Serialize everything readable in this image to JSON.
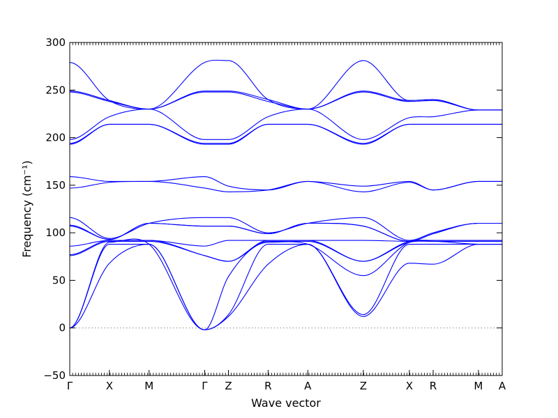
{
  "chart_data": {
    "type": "line",
    "title": "",
    "xlabel": "Wave vector",
    "ylabel": "Frequency (cm⁻¹)",
    "ylim": [
      -50,
      300
    ],
    "yticks": [
      -50,
      0,
      50,
      100,
      150,
      200,
      250,
      300
    ],
    "high_symmetry_points": [
      {
        "label": "Γ",
        "x": 0.0
      },
      {
        "label": "X",
        "x": 0.5
      },
      {
        "label": "M",
        "x": 1.0
      },
      {
        "label": "Γ",
        "x": 1.7
      },
      {
        "label": "Z",
        "x": 2.0
      },
      {
        "label": "R",
        "x": 2.5
      },
      {
        "label": "A",
        "x": 3.0
      },
      {
        "label": "Z",
        "x": 3.7
      },
      {
        "label": "X",
        "x": 4.28
      },
      {
        "label": "R",
        "x": 4.58
      },
      {
        "label": "M",
        "x": 5.15
      },
      {
        "label": "A",
        "x": 5.45
      }
    ],
    "xlim": [
      0.0,
      5.45
    ],
    "zero_line": {
      "y": 0,
      "style": "dotted",
      "color": "#888888"
    },
    "line_color": "#0000ff",
    "branches": [
      {
        "x": [
          0,
          0.5,
          1.0,
          1.7,
          2.0,
          2.5,
          3.0,
          3.7,
          4.28,
          4.58,
          5.15,
          5.45
        ],
        "y": [
          0,
          68,
          88,
          -2,
          12,
          67,
          88,
          12,
          68,
          67,
          88,
          88
        ]
      },
      {
        "x": [
          0,
          0.5,
          1.0,
          1.7,
          2.0,
          2.5,
          3.0,
          3.7,
          4.28,
          4.58,
          5.15,
          5.45
        ],
        "y": [
          0,
          88,
          88,
          -2,
          14,
          88,
          88,
          14,
          88,
          88,
          88,
          88
        ]
      },
      {
        "x": [
          0,
          0.5,
          1.0,
          1.7,
          2.0,
          2.5,
          3.0,
          3.7,
          4.28,
          4.58,
          5.15,
          5.45
        ],
        "y": [
          0,
          90,
          88,
          -2,
          54,
          90,
          88,
          55,
          90,
          91,
          88,
          88
        ]
      },
      {
        "x": [
          0,
          0.5,
          1.0,
          1.7,
          2.0,
          2.5,
          3.0,
          3.7,
          4.28,
          4.58,
          5.15,
          5.45
        ],
        "y": [
          76,
          91,
          91,
          76,
          70,
          91,
          91,
          70,
          90,
          91,
          91,
          91
        ]
      },
      {
        "x": [
          0,
          0.5,
          1.0,
          1.7,
          2.0,
          2.5,
          3.0,
          3.7,
          4.28,
          4.58,
          5.15,
          5.45
        ],
        "y": [
          77,
          92,
          92,
          76,
          70,
          92,
          92,
          70,
          91,
          92,
          92,
          92
        ]
      },
      {
        "x": [
          0,
          0.5,
          1.0,
          1.7,
          2.0,
          2.5,
          3.0,
          3.7,
          4.28,
          4.58,
          5.15,
          5.45
        ],
        "y": [
          86,
          92,
          92,
          86,
          92,
          92,
          92,
          92,
          91,
          92,
          92,
          92
        ]
      },
      {
        "x": [
          0,
          0.5,
          1.0,
          1.7,
          2.0,
          2.5,
          3.0,
          3.7,
          4.28,
          4.58,
          5.15,
          5.45
        ],
        "y": [
          107,
          93,
          110,
          107,
          107,
          99,
          110,
          107,
          91,
          99,
          110,
          110
        ]
      },
      {
        "x": [
          0,
          0.5,
          1.0,
          1.7,
          2.0,
          2.5,
          3.0,
          3.7,
          4.28,
          4.58,
          5.15,
          5.45
        ],
        "y": [
          108,
          93,
          110,
          107,
          107,
          99,
          110,
          107,
          91,
          99,
          110,
          110
        ]
      },
      {
        "x": [
          0,
          0.5,
          1.0,
          1.7,
          2.0,
          2.5,
          3.0,
          3.7,
          4.28,
          4.58,
          5.15,
          5.45
        ],
        "y": [
          116,
          94,
          110,
          116,
          116,
          100,
          110,
          116,
          92,
          100,
          110,
          110
        ]
      },
      {
        "x": [
          0,
          0.5,
          1.0,
          1.7,
          2.0,
          2.5,
          3.0,
          3.7,
          4.28,
          4.58,
          5.15,
          5.45
        ],
        "y": [
          147,
          153,
          154,
          147,
          143,
          145,
          154,
          143,
          153,
          145,
          154,
          154
        ]
      },
      {
        "x": [
          0,
          0.5,
          1.0,
          1.7,
          2.0,
          2.5,
          3.0,
          3.7,
          4.28,
          4.58,
          5.15,
          5.45
        ],
        "y": [
          159,
          154,
          154,
          159,
          149,
          145,
          154,
          149,
          154,
          145,
          154,
          154
        ]
      },
      {
        "x": [
          0,
          0.5,
          1.0,
          1.7,
          2.0,
          2.5,
          3.0,
          3.7,
          4.28,
          4.58,
          5.15,
          5.45
        ],
        "y": [
          193,
          214,
          214,
          193,
          193,
          214,
          214,
          193,
          214,
          214,
          214,
          214
        ]
      },
      {
        "x": [
          0,
          0.5,
          1.0,
          1.7,
          2.0,
          2.5,
          3.0,
          3.7,
          4.28,
          4.58,
          5.15,
          5.45
        ],
        "y": [
          194,
          214,
          214,
          194,
          194,
          214,
          214,
          194,
          214,
          214,
          214,
          214
        ]
      },
      {
        "x": [
          0,
          0.5,
          1.0,
          1.7,
          2.0,
          2.5,
          3.0,
          3.7,
          4.28,
          4.58,
          5.15,
          5.45
        ],
        "y": [
          198,
          222,
          230,
          198,
          198,
          222,
          230,
          198,
          221,
          222,
          229,
          229
        ]
      },
      {
        "x": [
          0,
          0.5,
          1.0,
          1.7,
          2.0,
          2.5,
          3.0,
          3.7,
          4.28,
          4.58,
          5.15,
          5.45
        ],
        "y": [
          248,
          238,
          230,
          248,
          248,
          238,
          230,
          248,
          238,
          239,
          229,
          229
        ]
      },
      {
        "x": [
          0,
          0.5,
          1.0,
          1.7,
          2.0,
          2.5,
          3.0,
          3.7,
          4.28,
          4.58,
          5.15,
          5.45
        ],
        "y": [
          249,
          239,
          230,
          249,
          249,
          240,
          230,
          249,
          239,
          240,
          229,
          229
        ]
      },
      {
        "x": [
          0,
          0.5,
          1.0,
          1.7,
          2.0,
          2.5,
          3.0,
          3.7,
          4.28,
          4.58,
          5.15,
          5.45
        ],
        "y": [
          279,
          239,
          230,
          279,
          281,
          240,
          230,
          281,
          239,
          240,
          229,
          229
        ]
      }
    ]
  }
}
